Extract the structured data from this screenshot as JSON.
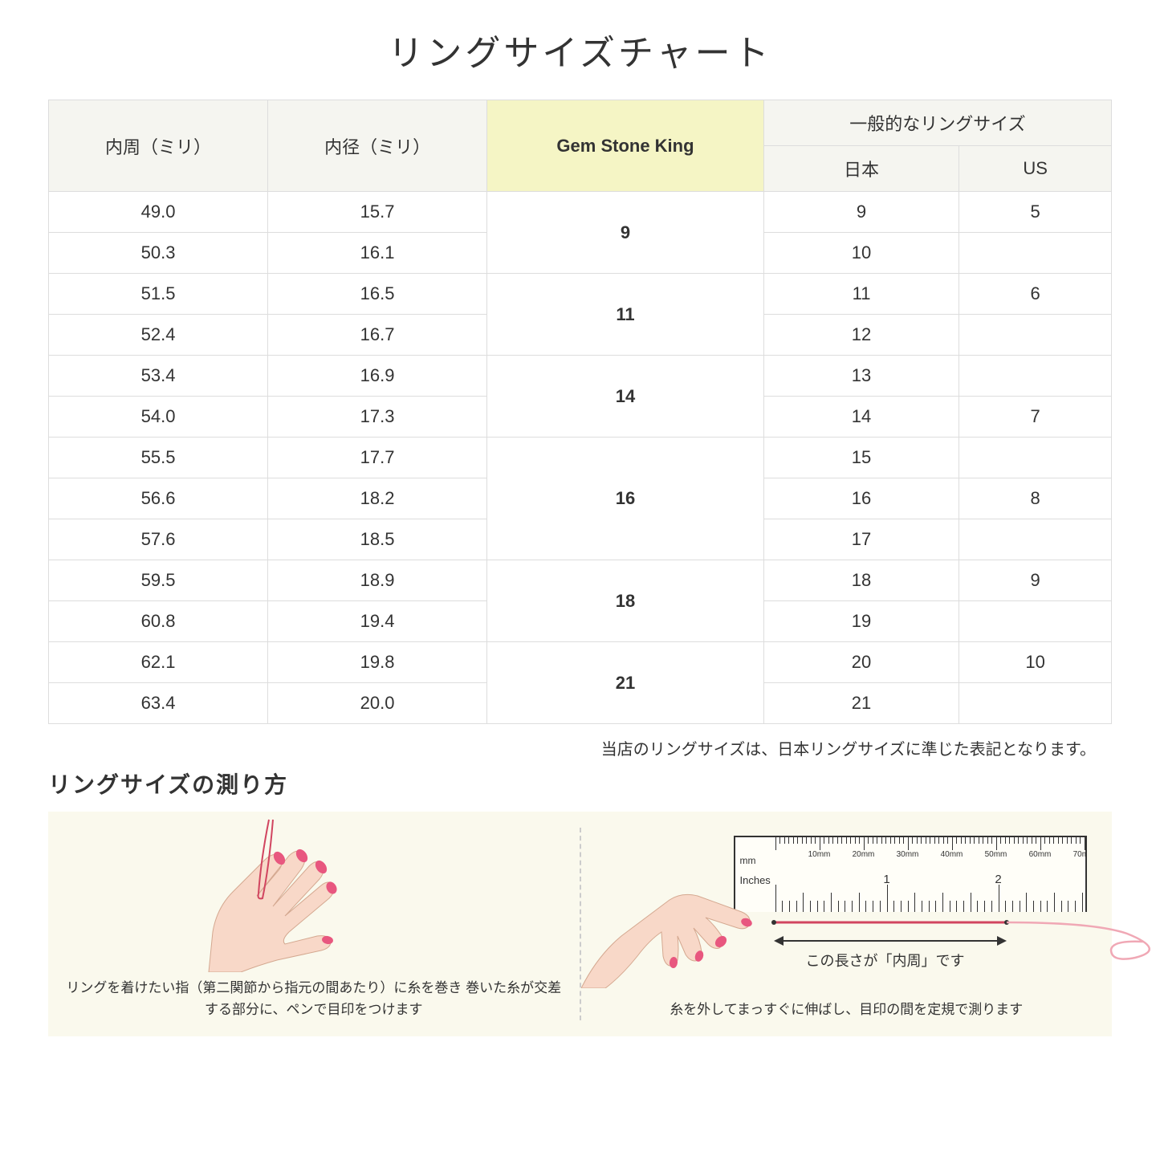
{
  "title": "リングサイズチャート",
  "table": {
    "headers": {
      "circumference": "内周（ミリ）",
      "diameter": "内径（ミリ）",
      "gsk": "Gem Stone King",
      "general": "一般的なリングサイズ",
      "japan": "日本",
      "us": "US"
    },
    "rows": [
      {
        "circ": "49.0",
        "dia": "15.7",
        "gsk": "9",
        "gsk_span": 2,
        "jp": "9",
        "us": "5"
      },
      {
        "circ": "50.3",
        "dia": "16.1",
        "jp": "10",
        "us": ""
      },
      {
        "circ": "51.5",
        "dia": "16.5",
        "gsk": "11",
        "gsk_span": 2,
        "jp": "11",
        "us": "6"
      },
      {
        "circ": "52.4",
        "dia": "16.7",
        "jp": "12",
        "us": ""
      },
      {
        "circ": "53.4",
        "dia": "16.9",
        "gsk": "14",
        "gsk_span": 2,
        "jp": "13",
        "us": ""
      },
      {
        "circ": "54.0",
        "dia": "17.3",
        "jp": "14",
        "us": "7"
      },
      {
        "circ": "55.5",
        "dia": "17.7",
        "gsk": "16",
        "gsk_span": 3,
        "jp": "15",
        "us": ""
      },
      {
        "circ": "56.6",
        "dia": "18.2",
        "jp": "16",
        "us": "8"
      },
      {
        "circ": "57.6",
        "dia": "18.5",
        "jp": "17",
        "us": ""
      },
      {
        "circ": "59.5",
        "dia": "18.9",
        "gsk": "18",
        "gsk_span": 2,
        "jp": "18",
        "us": "9"
      },
      {
        "circ": "60.8",
        "dia": "19.4",
        "jp": "19",
        "us": ""
      },
      {
        "circ": "62.1",
        "dia": "19.8",
        "gsk": "21",
        "gsk_span": 2,
        "jp": "20",
        "us": "10"
      },
      {
        "circ": "63.4",
        "dia": "20.0",
        "jp": "21",
        "us": ""
      }
    ]
  },
  "note": "当店のリングサイズは、日本リングサイズに準じた表記となります。",
  "subtitle": "リングサイズの測り方",
  "guide": {
    "left_text": "リングを着けたい指（第二関節から指元の間あたり）に糸を巻き\n巻いた糸が交差する部分に、ペンで目印をつけます",
    "right_text": "糸を外してまっすぐに伸ばし、目印の間を定規で測ります",
    "arrow_label": "この長さが「内周」です",
    "ruler_mm": "mm",
    "ruler_inches": "Inches"
  },
  "colors": {
    "header_bg": "#f5f5f0",
    "gsk_bg": "#f5f5c5",
    "guide_bg": "#faf9ed",
    "skin": "#f8d8c8",
    "nail": "#e8577f",
    "thread": "#d14560"
  }
}
